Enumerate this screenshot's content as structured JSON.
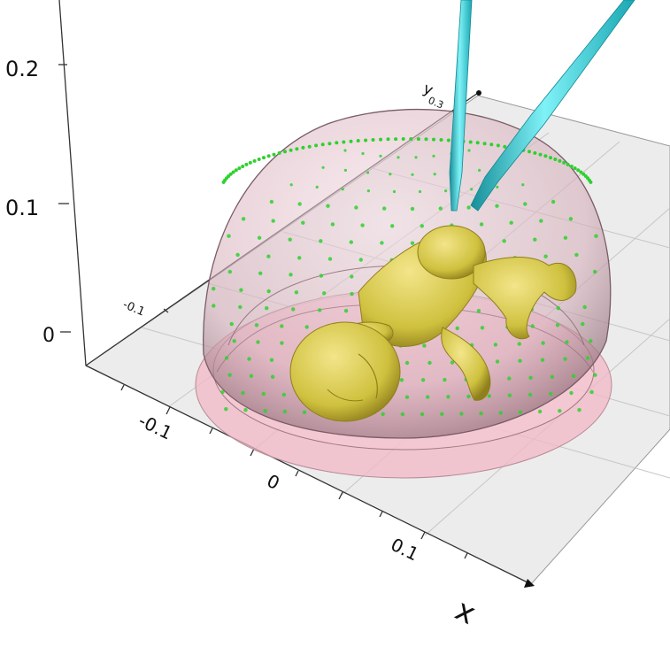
{
  "axes": {
    "z_ticks": [
      "0.2",
      "0.1",
      "0"
    ],
    "y_ticks": [
      "-0.1",
      "0.3"
    ],
    "x_ticks": [
      "-0.1",
      "0",
      "0.1"
    ],
    "x_label": "x",
    "y_label": "y"
  },
  "colors": {
    "floor": "#e9e9e9",
    "grid": "#c9c9c9",
    "axis": "#333333",
    "dome_fill": "#c89aa6",
    "dome_stroke": "#8a6670",
    "base_fill": "#f0b9c6",
    "fetus": "#cfc13e",
    "fetus_shadow": "#8f7f1d",
    "points": "#2ed12e",
    "probe": "#39d7e3"
  },
  "icons": {
    "probe_1": "ultrasound-probe-icon",
    "probe_2": "ultrasound-probe-icon"
  }
}
